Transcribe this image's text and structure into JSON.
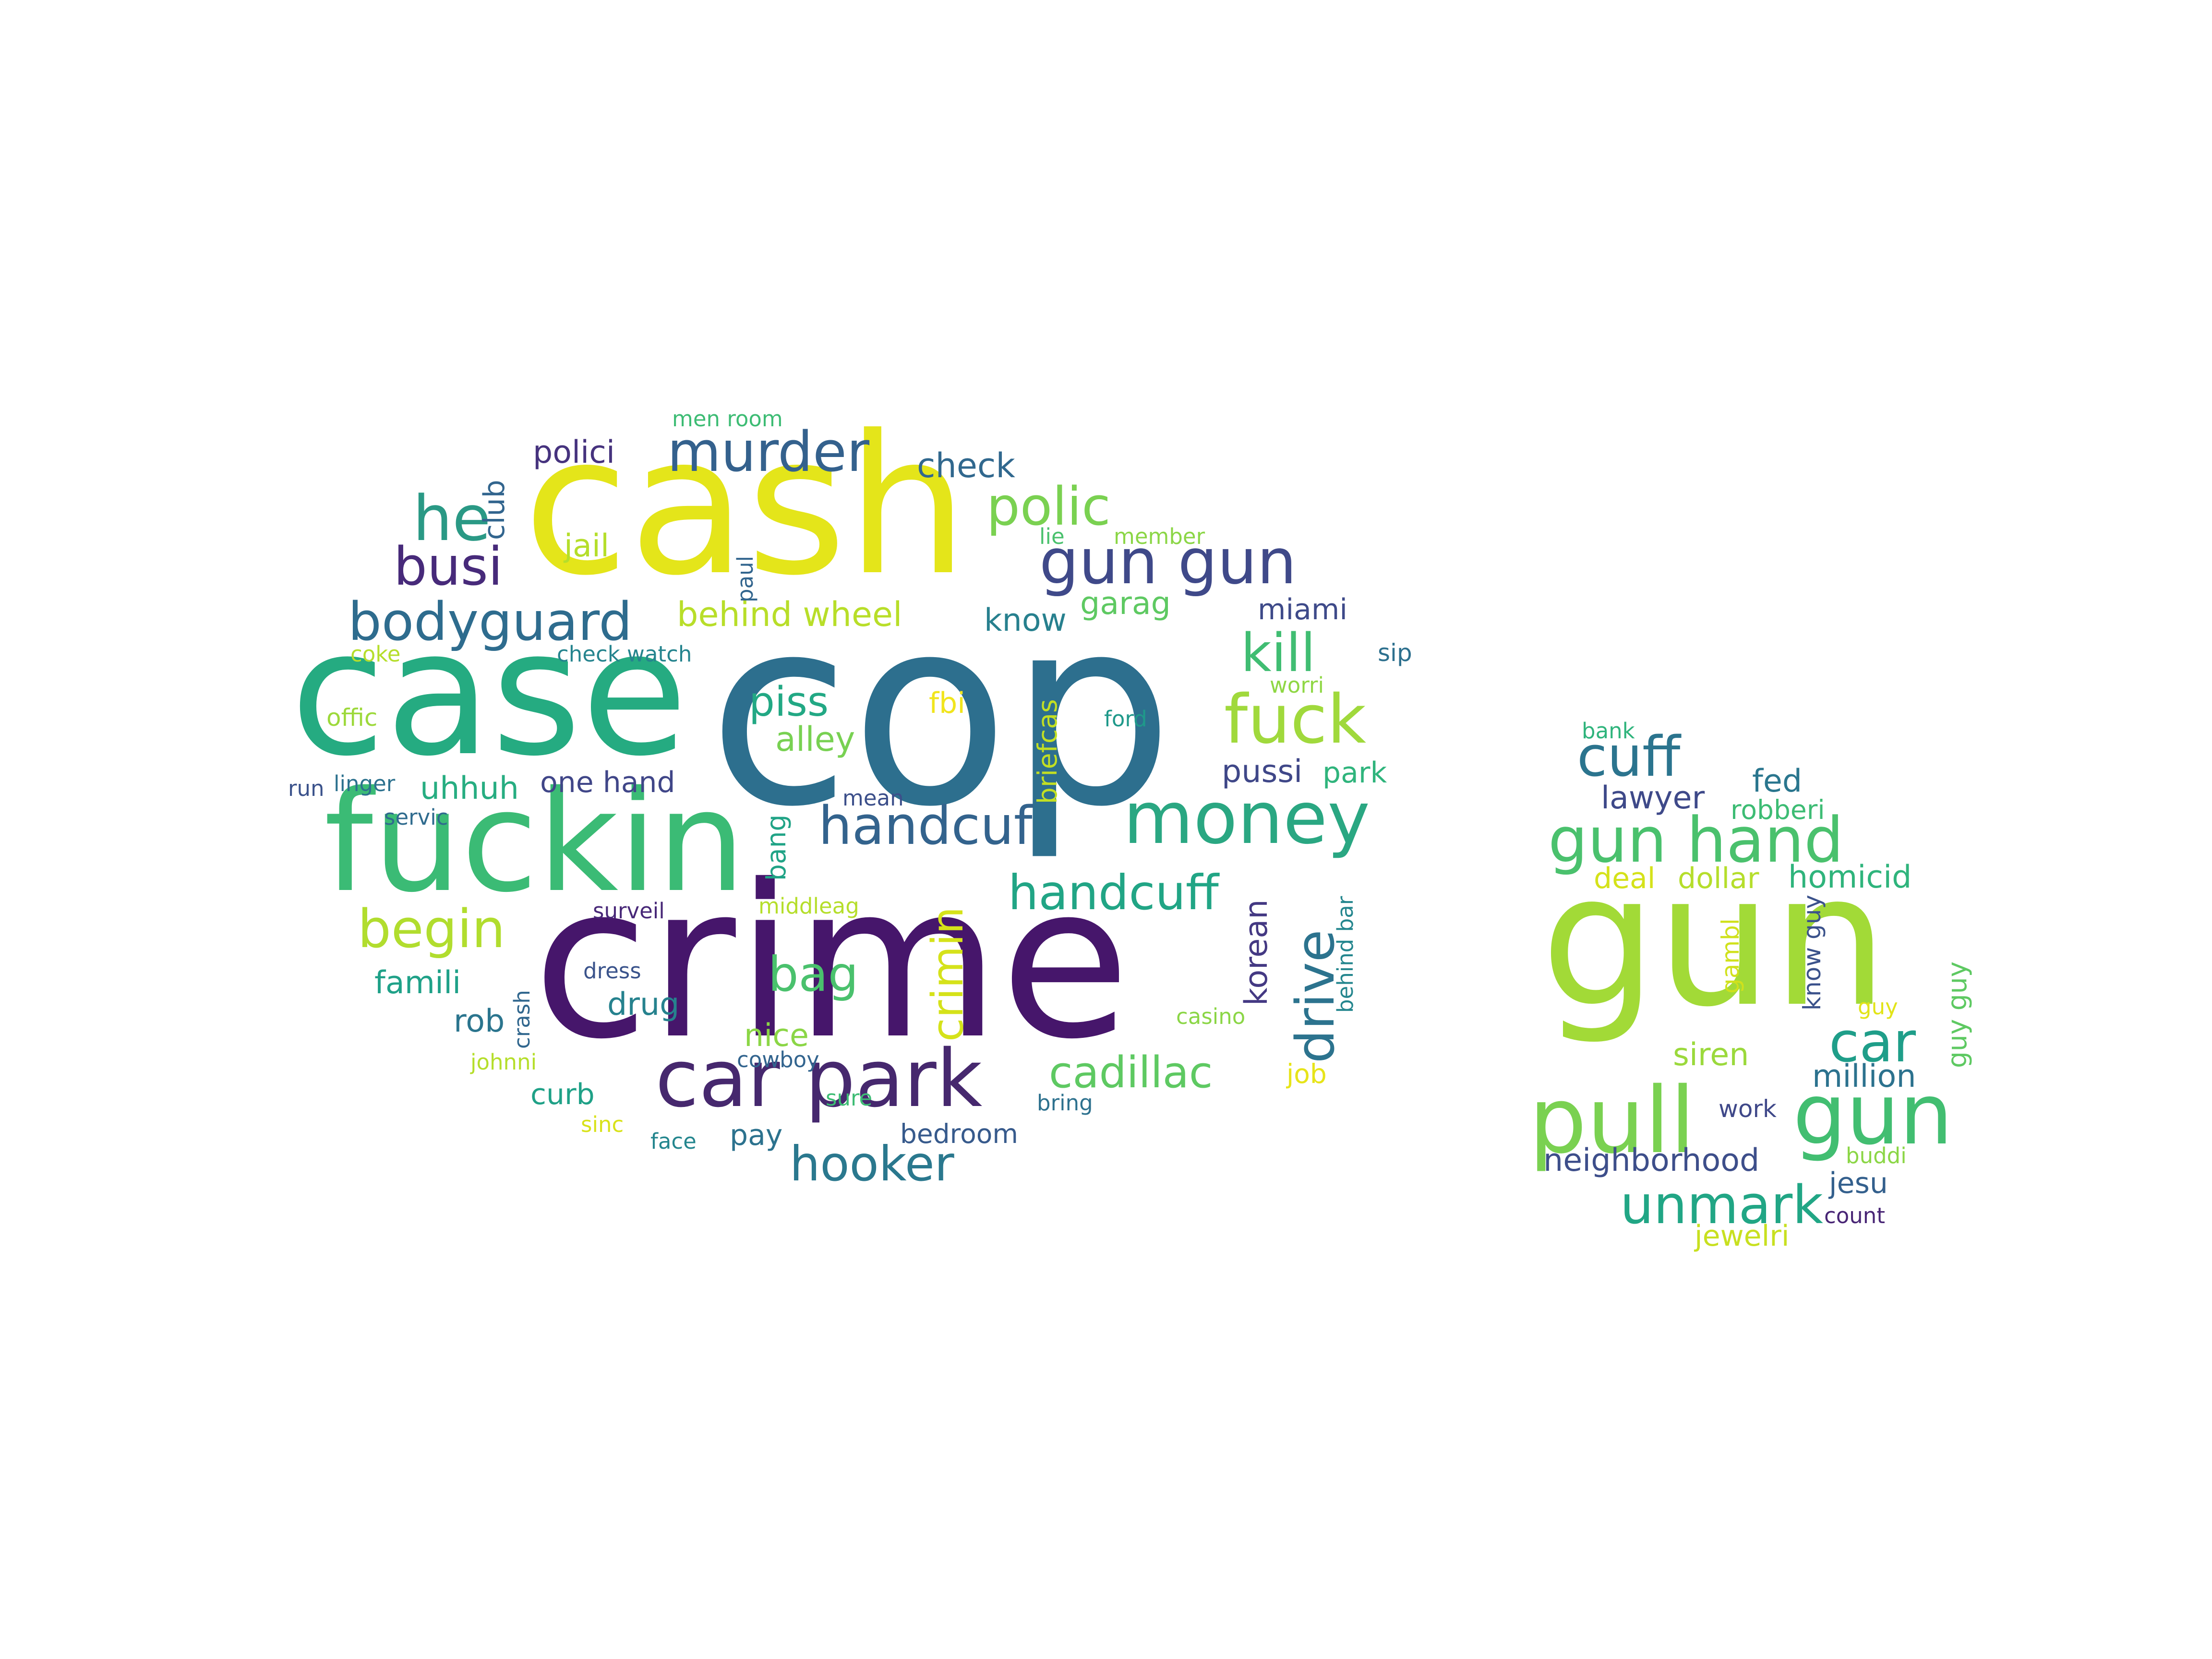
{
  "words": {
    "cop": "cop",
    "crime": "crime",
    "cash": "cash",
    "case": "case",
    "fuckin": "fuckin",
    "car_park": "car park",
    "money": "money",
    "fuck": "fuck",
    "gun_gun": "gun gun",
    "he": "he",
    "murder": "murder",
    "bodyguard": "bodyguard",
    "busi": "busi",
    "begin": "begin",
    "polic": "polic",
    "handcuf": "handcuf",
    "handcuff": "handcuff",
    "kill": "kill",
    "hooker": "hooker",
    "bag": "bag",
    "cadillac": "cadillac",
    "piss": "piss",
    "alley": "alley",
    "behind_wheel": "behind wheel",
    "check": "check",
    "polici": "polici",
    "jail": "jail",
    "know": "know",
    "garag": "garag",
    "miami": "miami",
    "pussi": "pussi",
    "park": "park",
    "uhhuh": "uhhuh",
    "one_hand": "one hand",
    "famili": "famili",
    "rob": "rob",
    "drug": "drug",
    "nice": "nice",
    "curb": "curb",
    "pay": "pay",
    "bedroom": "bedroom",
    "job": "job",
    "fbi": "fbi",
    "coke": "coke",
    "check_watch": "check watch",
    "offic": "offic",
    "run": "run",
    "linger": "linger",
    "servic": "servic",
    "surveil": "surveil",
    "middleag": "middleag",
    "dress": "dress",
    "johnni": "johnni",
    "cowboy": "cowboy",
    "sure": "sure",
    "sinc": "sinc",
    "face": "face",
    "bring": "bring",
    "casino": "casino",
    "mean": "mean",
    "ford": "ford",
    "worri": "worri",
    "sip": "sip",
    "lie": "lie",
    "member": "member",
    "men_room": "men room",
    "club": "club",
    "paul": "paul",
    "briefcas": "briefcas",
    "bang": "bang",
    "crimin": "crimin",
    "drive": "drive",
    "korean": "korean",
    "behind_bar": "behind bar",
    "crash": "crash",
    "gun": "gun",
    "pull": "pull",
    "gun_r": "gun",
    "gun_hand": "gun hand",
    "cuff": "cuff",
    "unmark": "unmark",
    "car_r": "car",
    "lawyer": "lawyer",
    "fed": "fed",
    "robberi": "robberi",
    "deal": "deal",
    "dollar": "dollar",
    "homicid": "homicid",
    "siren": "siren",
    "million": "million",
    "neighborhood": "neighborhood",
    "jesu": "jesu",
    "count": "count",
    "jewelri": "jewelri",
    "work": "work",
    "buddi": "buddi",
    "bank": "bank",
    "guy": "guy",
    "gambl": "gambl",
    "know_guy": "know guy",
    "guy_guy": "guy guy"
  }
}
